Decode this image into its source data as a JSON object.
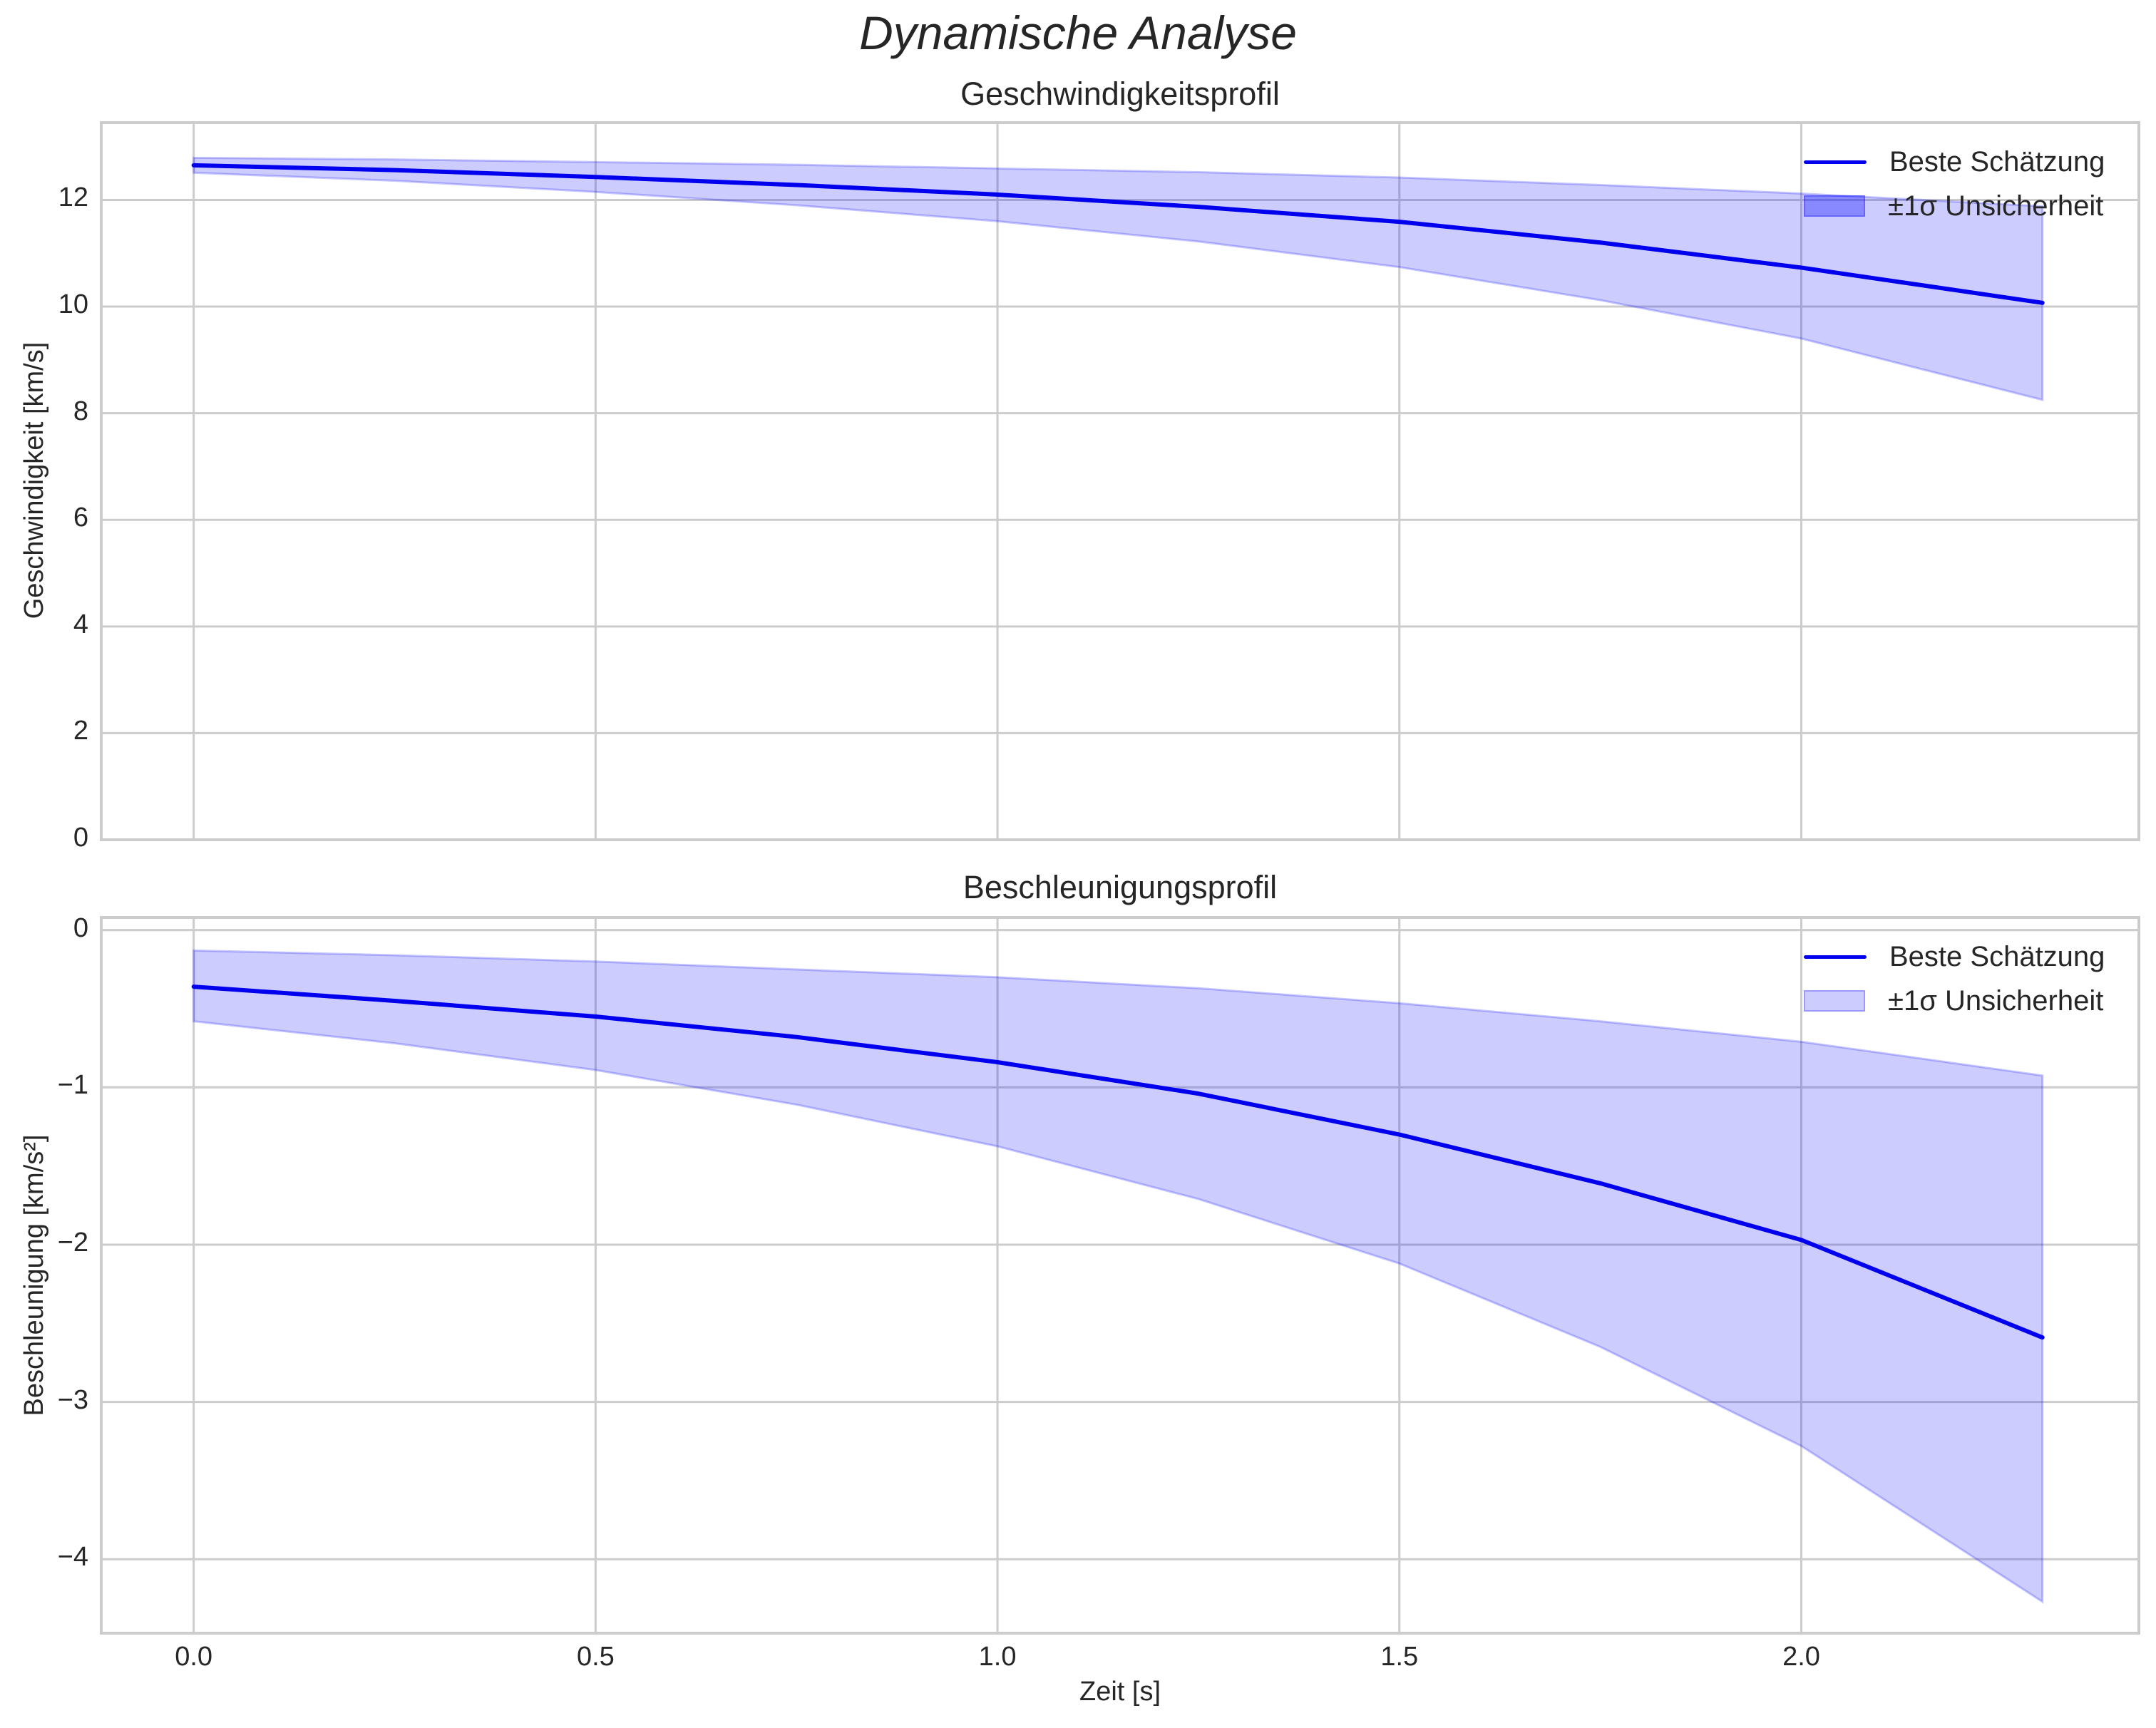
{
  "figure": {
    "suptitle": "Dynamische Analyse"
  },
  "panels": [
    {
      "title": "Geschwindigkeitsprofil",
      "ylabel": "Geschwindigkeit [km/s]",
      "yticks": [
        "0",
        "2",
        "4",
        "6",
        "8",
        "10",
        "12"
      ],
      "legend": [
        "Beste Schätzung",
        "±1σ Unsicherheit"
      ]
    },
    {
      "title": "Beschleunigungsprofil",
      "ylabel": "Beschleunigung [km/s²]",
      "yticks": [
        "−4",
        "−3",
        "−2",
        "−1",
        "0"
      ],
      "legend": [
        "Beste Schätzung",
        "±1σ Unsicherheit"
      ]
    }
  ],
  "xaxis": {
    "label": "Zeit [s]",
    "ticks": [
      "0.0",
      "0.5",
      "1.0",
      "1.5",
      "2.0"
    ]
  },
  "colors": {
    "line": "#0000ee",
    "band_fill": "#0000ff",
    "band_alpha": 0.2,
    "grid": "#cccccc",
    "text": "#262626"
  },
  "chart_data": [
    {
      "type": "line",
      "title": "Geschwindigkeitsprofil",
      "suptitle": "Dynamische Analyse",
      "xlabel": "Zeit [s]",
      "ylabel": "Geschwindigkeit [km/s]",
      "xlim": [
        -0.115,
        2.42
      ],
      "ylim": [
        0,
        13.45
      ],
      "xticks": [
        0.0,
        0.5,
        1.0,
        1.5,
        2.0
      ],
      "yticks": [
        0,
        2,
        4,
        6,
        8,
        10,
        12
      ],
      "grid": true,
      "legend_position": "upper right",
      "x": [
        0.0,
        0.25,
        0.5,
        0.75,
        1.0,
        1.25,
        1.5,
        1.75,
        2.0,
        2.3
      ],
      "series": [
        {
          "name": "Beste Schätzung",
          "kind": "line",
          "values": [
            12.65,
            12.56,
            12.43,
            12.28,
            12.1,
            11.87,
            11.59,
            11.2,
            10.73,
            10.07
          ]
        },
        {
          "name": "±1σ Unsicherheit",
          "kind": "band",
          "upper": [
            12.79,
            12.76,
            12.71,
            12.66,
            12.59,
            12.52,
            12.42,
            12.28,
            12.12,
            11.88
          ],
          "lower": [
            12.51,
            12.36,
            12.15,
            11.9,
            11.6,
            11.22,
            10.74,
            10.12,
            9.4,
            8.25
          ]
        }
      ]
    },
    {
      "type": "line",
      "title": "Beschleunigungsprofil",
      "xlabel": "Zeit [s]",
      "ylabel": "Beschleunigung [km/s²]",
      "xlim": [
        -0.115,
        2.42
      ],
      "ylim": [
        -4.47,
        0.08
      ],
      "xticks": [
        0.0,
        0.5,
        1.0,
        1.5,
        2.0
      ],
      "yticks": [
        -4,
        -3,
        -2,
        -1,
        0
      ],
      "grid": true,
      "legend_position": "upper right",
      "x": [
        0.0,
        0.25,
        0.5,
        0.75,
        1.0,
        1.25,
        1.5,
        1.75,
        2.0,
        2.3
      ],
      "series": [
        {
          "name": "Beste Schätzung",
          "kind": "line",
          "values": [
            -0.36,
            -0.45,
            -0.55,
            -0.68,
            -0.84,
            -1.04,
            -1.3,
            -1.61,
            -1.97,
            -2.59
          ]
        },
        {
          "name": "±1σ Unsicherheit",
          "kind": "band",
          "upper": [
            -0.13,
            -0.16,
            -0.2,
            -0.25,
            -0.3,
            -0.37,
            -0.465,
            -0.58,
            -0.71,
            -0.925
          ],
          "lower": [
            -0.58,
            -0.72,
            -0.89,
            -1.11,
            -1.375,
            -1.71,
            -2.12,
            -2.65,
            -3.28,
            -4.27
          ]
        }
      ]
    }
  ]
}
